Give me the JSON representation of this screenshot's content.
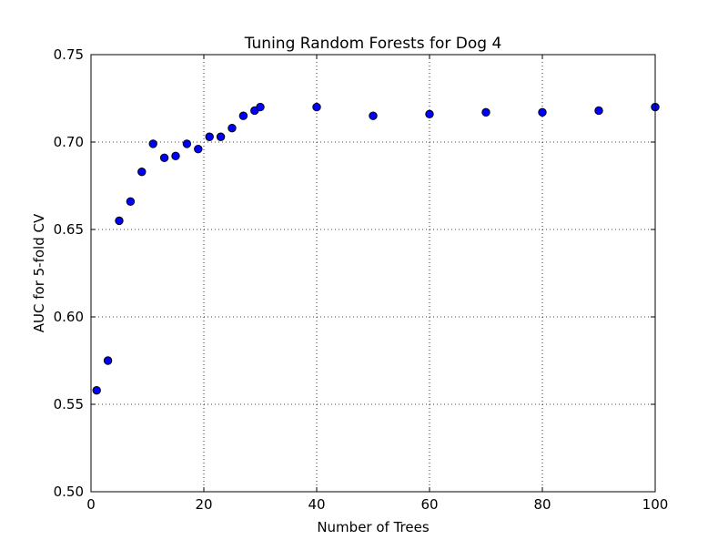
{
  "chart_data": {
    "type": "scatter",
    "title": "Tuning Random Forests for Dog 4",
    "xlabel": "Number of Trees",
    "ylabel": "AUC for 5-fold CV",
    "xlim": [
      0,
      100
    ],
    "ylim": [
      0.5,
      0.75
    ],
    "xticks": [
      0,
      20,
      40,
      60,
      80,
      100
    ],
    "xtick_labels": [
      "0",
      "20",
      "40",
      "60",
      "80",
      "100"
    ],
    "yticks": [
      0.5,
      0.55,
      0.6,
      0.65,
      0.7,
      0.75
    ],
    "ytick_labels": [
      "0.50",
      "0.55",
      "0.60",
      "0.65",
      "0.70",
      "0.75"
    ],
    "grid": true,
    "grid_style": "dotted",
    "marker": "circle",
    "marker_color": "#0000ff",
    "x": [
      1,
      3,
      5,
      7,
      9,
      11,
      13,
      15,
      17,
      19,
      21,
      23,
      25,
      27,
      29,
      30,
      40,
      50,
      60,
      70,
      80,
      90,
      100
    ],
    "y": [
      0.558,
      0.575,
      0.655,
      0.666,
      0.683,
      0.699,
      0.691,
      0.692,
      0.699,
      0.696,
      0.703,
      0.703,
      0.708,
      0.715,
      0.718,
      0.72,
      0.72,
      0.715,
      0.716,
      0.717,
      0.717,
      0.718,
      0.72
    ]
  }
}
